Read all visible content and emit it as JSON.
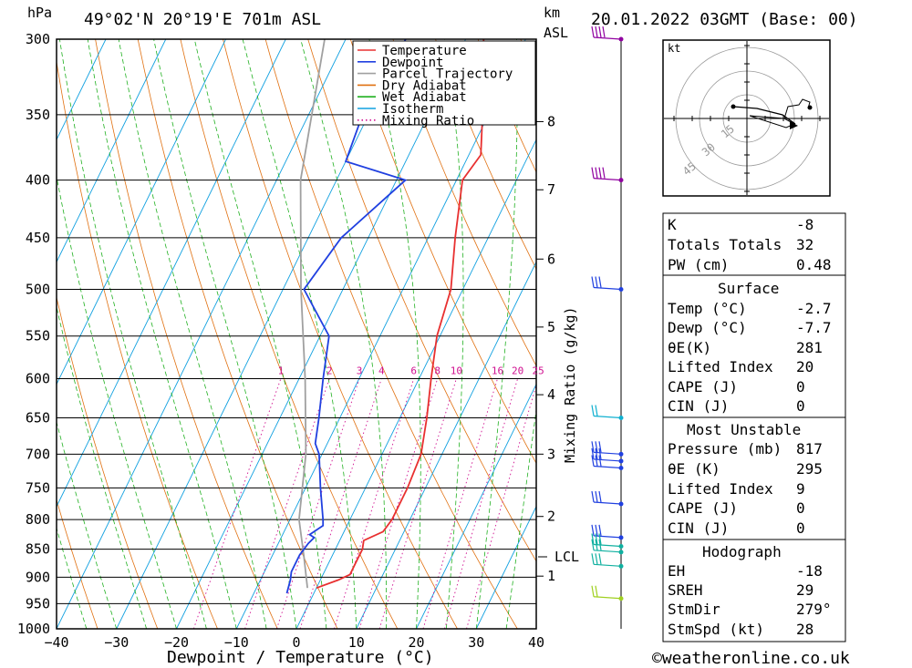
{
  "header": {
    "units_left": "hPa",
    "location": "49°02'N 20°19'E 701m ASL",
    "units_km": "km",
    "units_asl": "ASL",
    "datetime": "20.01.2022 03GMT (Base: 00)"
  },
  "footer": {
    "xlabel": "Dewpoint / Temperature (°C)",
    "copyright": "©weatheronline.co.uk"
  },
  "mixing_axis_label": "Mixing Ratio (g/kg)",
  "legend": [
    {
      "label": "Temperature",
      "color": "#e83030",
      "style": "solid"
    },
    {
      "label": "Dewpoint",
      "color": "#2040e0",
      "style": "solid"
    },
    {
      "label": "Parcel Trajectory",
      "color": "#a0a0a0",
      "style": "solid"
    },
    {
      "label": "Dry Adiabat",
      "color": "#e07010",
      "style": "solid"
    },
    {
      "label": "Wet Adiabat",
      "color": "#20b020",
      "style": "solid"
    },
    {
      "label": "Isotherm",
      "color": "#10a0e0",
      "style": "solid"
    },
    {
      "label": "Mixing Ratio",
      "color": "#d01090",
      "style": "dotted"
    }
  ],
  "hodograph": {
    "unit": "kt",
    "rings": [
      "15",
      "30",
      "45"
    ]
  },
  "indices": {
    "k": {
      "label": "K",
      "value": "-8"
    },
    "tt": {
      "label": "Totals Totals",
      "value": "32"
    },
    "pw": {
      "label": "PW (cm)",
      "value": "0.48"
    },
    "surface_title": "Surface",
    "surface": [
      {
        "label": "Temp (°C)",
        "value": "-2.7"
      },
      {
        "label": "Dewp (°C)",
        "value": "-7.7"
      },
      {
        "label": "θE(K)",
        "value": "281"
      },
      {
        "label": "Lifted Index",
        "value": "20"
      },
      {
        "label": "CAPE (J)",
        "value": "0"
      },
      {
        "label": "CIN (J)",
        "value": "0"
      }
    ],
    "mu_title": "Most Unstable",
    "most_unstable": [
      {
        "label": "Pressure (mb)",
        "value": "817"
      },
      {
        "label": "θE (K)",
        "value": "295"
      },
      {
        "label": "Lifted Index",
        "value": "9"
      },
      {
        "label": "CAPE (J)",
        "value": "0"
      },
      {
        "label": "CIN (J)",
        "value": "0"
      }
    ],
    "hodo_title": "Hodograph",
    "hodo": [
      {
        "label": "EH",
        "value": "-18"
      },
      {
        "label": "SREH",
        "value": "29"
      },
      {
        "label": "StmDir",
        "value": "279°"
      },
      {
        "label": "StmSpd (kt)",
        "value": "28"
      }
    ]
  },
  "chart_data": {
    "type": "line",
    "title": "49°02'N 20°19'E 701m ASL",
    "xlabel": "Dewpoint / Temperature (°C)",
    "ylabel": "hPa",
    "x_ticks": [
      -40,
      -30,
      -20,
      -10,
      0,
      10,
      20,
      30,
      40
    ],
    "pressure_levels": [
      300,
      350,
      400,
      450,
      500,
      550,
      600,
      650,
      700,
      750,
      800,
      850,
      900,
      950,
      1000
    ],
    "xlim": [
      -40,
      40
    ],
    "ylim": [
      1000,
      300
    ],
    "km_ticks": [
      {
        "label": "8",
        "p": 355
      },
      {
        "label": "7",
        "p": 408
      },
      {
        "label": "6",
        "p": 470
      },
      {
        "label": "5",
        "p": 540
      },
      {
        "label": "4",
        "p": 620
      },
      {
        "label": "3",
        "p": 700
      },
      {
        "label": "2",
        "p": 795
      },
      {
        "label": "1",
        "p": 898
      }
    ],
    "lcl_label": "LCL",
    "lcl_p": 862,
    "mixing_ratio_labels": [
      "1",
      "2",
      "3",
      "4",
      "6",
      "8",
      "10",
      "16",
      "20",
      "25"
    ],
    "series": [
      {
        "name": "Temperature",
        "color": "#e83030",
        "points": [
          [
            920,
            0
          ],
          [
            905,
            3
          ],
          [
            895,
            4.5
          ],
          [
            875,
            4.5
          ],
          [
            850,
            4.5
          ],
          [
            835,
            4
          ],
          [
            820,
            6.5
          ],
          [
            800,
            7
          ],
          [
            750,
            7
          ],
          [
            700,
            6.5
          ],
          [
            650,
            4.5
          ],
          [
            600,
            2
          ],
          [
            550,
            -0.5
          ],
          [
            500,
            -2
          ],
          [
            450,
            -5.5
          ],
          [
            400,
            -9
          ],
          [
            380,
            -8
          ],
          [
            350,
            -11
          ],
          [
            300,
            -17
          ]
        ]
      },
      {
        "name": "Dewpoint",
        "color": "#2040e0",
        "points": [
          [
            930,
            -4.5
          ],
          [
            905,
            -5
          ],
          [
            890,
            -5.5
          ],
          [
            860,
            -5.5
          ],
          [
            840,
            -5
          ],
          [
            830,
            -4.5
          ],
          [
            825,
            -5.5
          ],
          [
            810,
            -4
          ],
          [
            800,
            -4.5
          ],
          [
            750,
            -7.5
          ],
          [
            700,
            -10.5
          ],
          [
            685,
            -12
          ],
          [
            650,
            -13.5
          ],
          [
            600,
            -16
          ],
          [
            550,
            -18.5
          ],
          [
            500,
            -26.5
          ],
          [
            450,
            -24.5
          ],
          [
            400,
            -18.5
          ],
          [
            385,
            -30
          ],
          [
            350,
            -31
          ],
          [
            300,
            -30
          ]
        ]
      },
      {
        "name": "Parcel Trajectory",
        "color": "#a0a0a0",
        "points": [
          [
            920,
            -1.5
          ],
          [
            862,
            -4.7
          ],
          [
            800,
            -8.5
          ],
          [
            700,
            -12.7
          ],
          [
            600,
            -19
          ],
          [
            500,
            -27
          ],
          [
            400,
            -36
          ],
          [
            300,
            -43.5
          ]
        ]
      }
    ]
  }
}
